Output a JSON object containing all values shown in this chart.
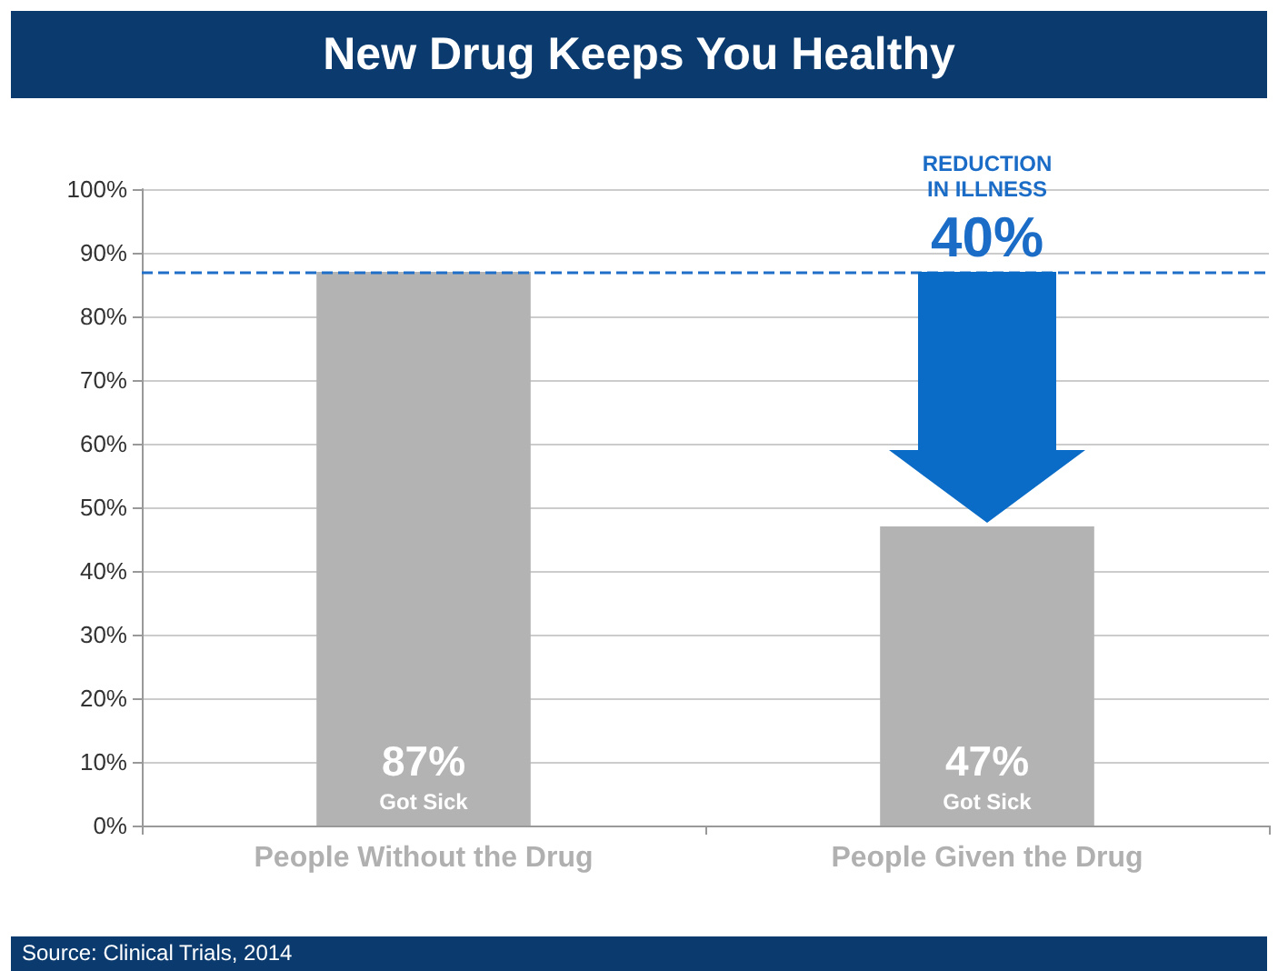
{
  "chart_data": {
    "type": "bar",
    "title": "New Drug Keeps You Healthy",
    "categories": [
      "People Without the Drug",
      "People Given the Drug"
    ],
    "values": [
      87,
      47
    ],
    "color": "#b3b3b3",
    "value_labels": [
      "87%",
      "47%"
    ],
    "ylim": [
      0,
      100
    ],
    "yticks": [
      {
        "value": 0,
        "label": "0%"
      },
      {
        "value": 10,
        "label": "10%"
      },
      {
        "value": 20,
        "label": "20%"
      },
      {
        "value": 30,
        "label": "30%"
      },
      {
        "value": 40,
        "label": "40%"
      },
      {
        "value": 50,
        "label": "50%"
      },
      {
        "value": 60,
        "label": "60%"
      },
      {
        "value": 70,
        "label": "70%"
      },
      {
        "value": 80,
        "label": "80%"
      },
      {
        "value": 90,
        "label": "90%"
      },
      {
        "value": 100,
        "label": "100%"
      }
    ],
    "grid": "y",
    "ref_lines": [
      {
        "axis": "y",
        "value": 87,
        "color": "#1f6fc8",
        "line_style": "dashed"
      }
    ],
    "annotations": [
      {
        "text": "Got Sick",
        "x": "People Without the Drug",
        "y": 0
      },
      {
        "text": "Got Sick",
        "x": "People Given the Drug",
        "y": 0
      },
      "REDUCTION IN ILLNESS",
      {
        "text": "40%",
        "x": "People Given the Drug",
        "y": 87
      },
      "Source: Clinical Trials, 2014"
    ]
  }
}
